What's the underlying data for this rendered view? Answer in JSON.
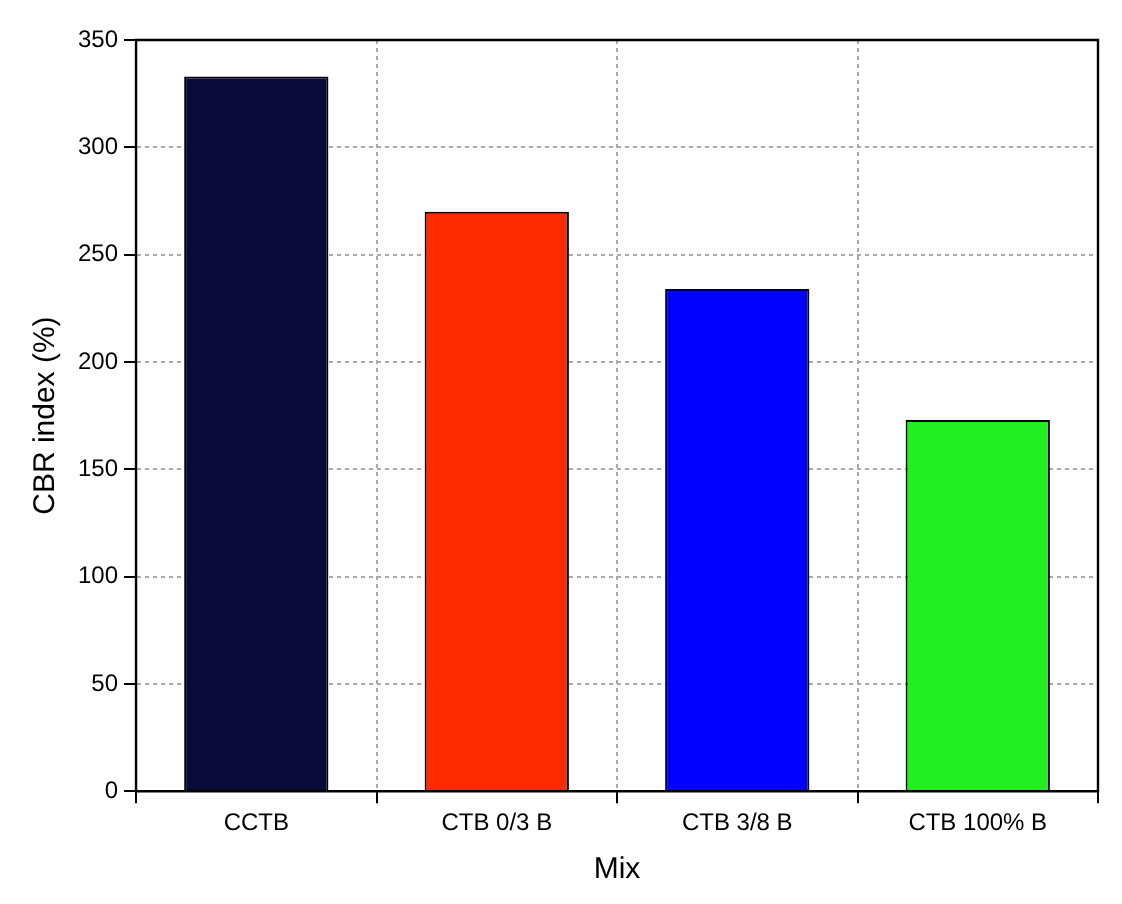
{
  "chart_data": {
    "type": "bar",
    "xlabel": "Mix",
    "ylabel": "CBR index (%)",
    "categories": [
      "CCTB",
      "CTB 0/3 B",
      "CTB 3/8 B",
      "CTB 100% B"
    ],
    "values": [
      333,
      270,
      234,
      173
    ],
    "colors": [
      "#0a0a3a",
      "#ff2a00",
      "#0000ff",
      "#22ee22"
    ],
    "ylim": [
      0,
      350
    ],
    "yticks": [
      0,
      50,
      100,
      150,
      200,
      250,
      300,
      350
    ],
    "grid": true,
    "legend": false
  }
}
